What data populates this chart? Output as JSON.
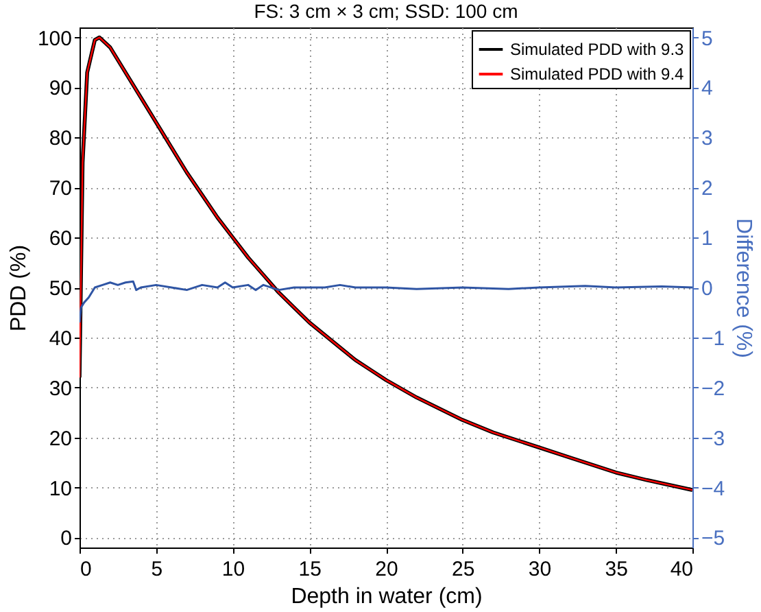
{
  "chart_data": {
    "type": "line",
    "title": "FS: 3 cm × 3 cm; SSD: 100 cm",
    "xlabel": "Depth in water (cm)",
    "ylabel": "PDD (%)",
    "y2label": "Difference (%)",
    "xlim": [
      0,
      40
    ],
    "xticks": [
      0,
      5,
      10,
      15,
      20,
      25,
      30,
      35,
      40
    ],
    "ylim": [
      -2,
      102
    ],
    "yticks": [
      0,
      10,
      20,
      30,
      40,
      50,
      60,
      70,
      80,
      90,
      100
    ],
    "y2lim": [
      -5.2,
      5.2
    ],
    "y2ticks": [
      -5,
      -4,
      -3,
      -2,
      -1,
      0,
      1,
      2,
      3,
      4,
      5
    ],
    "grid": true,
    "legend": "top right",
    "line_style": "solid",
    "series": [
      {
        "name": "Simulated PDD with 9.3",
        "color": "#000000",
        "x": [
          0,
          0.2,
          0.5,
          1,
          1.3,
          2,
          3,
          4,
          5,
          6,
          7,
          8,
          9,
          10,
          11,
          12,
          13,
          14,
          15,
          16,
          17,
          18,
          19,
          20,
          22,
          24,
          25,
          27,
          30,
          32,
          35,
          37,
          40
        ],
        "values": [
          32,
          75,
          93,
          99.5,
          100,
          98,
          93,
          88,
          83,
          78,
          73,
          68.5,
          64,
          60,
          56,
          52.5,
          49,
          46,
          43,
          40.5,
          38,
          35.5,
          33.5,
          31.5,
          28,
          25,
          23.5,
          21,
          18,
          16,
          13,
          11.5,
          9.5
        ]
      },
      {
        "name": "Simulated PDD with 9.4",
        "color": "#ff0000",
        "x": [
          0,
          0.2,
          0.5,
          1,
          1.3,
          2,
          3,
          4,
          5,
          6,
          7,
          8,
          9,
          10,
          11,
          12,
          13,
          14,
          15,
          16,
          17,
          18,
          19,
          20,
          22,
          24,
          25,
          27,
          30,
          32,
          35,
          37,
          40
        ],
        "values": [
          32,
          75,
          93,
          99.5,
          100,
          98,
          93,
          88,
          83,
          78,
          73,
          68.5,
          64,
          60,
          56,
          52.5,
          49,
          46,
          43,
          40.5,
          38,
          35.5,
          33.5,
          31.5,
          28,
          25,
          23.5,
          21,
          18,
          16,
          13,
          11.5,
          9.5
        ]
      },
      {
        "color": "#2f55a4",
        "axis": "y2",
        "x": [
          0,
          0.1,
          0.3,
          0.6,
          1,
          1.5,
          2,
          2.5,
          3,
          3.5,
          3.7,
          4,
          5,
          6,
          7,
          8,
          9,
          9.5,
          10,
          11,
          11.5,
          12,
          13,
          14,
          15,
          16,
          17,
          18,
          20,
          22,
          25,
          28,
          30,
          33,
          35,
          38,
          40
        ],
        "values": [
          -0.7,
          -0.4,
          -0.3,
          -0.2,
          0,
          0.05,
          0.1,
          0.05,
          0.1,
          0.12,
          -0.05,
          0,
          0.05,
          0,
          -0.05,
          0.05,
          0,
          0.1,
          0,
          0.05,
          -0.05,
          0.05,
          -0.05,
          0,
          0,
          0,
          0.05,
          0,
          0,
          -0.03,
          0,
          -0.03,
          0,
          0.03,
          0,
          0.02,
          0
        ]
      }
    ]
  }
}
